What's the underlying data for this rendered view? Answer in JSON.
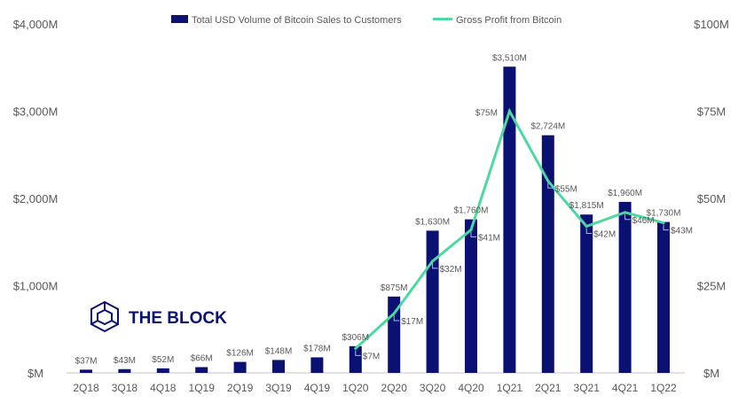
{
  "chart_data": {
    "type": "bar+line",
    "categories": [
      "2Q18",
      "3Q18",
      "4Q18",
      "1Q19",
      "2Q19",
      "3Q19",
      "4Q19",
      "1Q20",
      "2Q20",
      "3Q20",
      "4Q20",
      "1Q21",
      "2Q21",
      "3Q21",
      "4Q21",
      "1Q22"
    ],
    "series": [
      {
        "name": "Total USD Volume of Bitcoin Sales to Customers",
        "type": "bar",
        "axis": "left",
        "color": "#0a1172",
        "values": [
          37,
          43,
          52,
          66,
          126,
          148,
          178,
          306,
          875,
          1630,
          1760,
          3510,
          2724,
          1815,
          1960,
          1730
        ],
        "labels": [
          "$37M",
          "$43M",
          "$52M",
          "$66M",
          "$126M",
          "$148M",
          "$178M",
          "$306M",
          "$875M",
          "$1,630M",
          "$1,760M",
          "$3,510M",
          "$2,724M",
          "$1,815M",
          "$1,960M",
          "$1,730M"
        ]
      },
      {
        "name": "Gross Profit from Bitcoin",
        "type": "line",
        "axis": "right",
        "color": "#4cd9a0",
        "values": [
          null,
          null,
          null,
          null,
          null,
          null,
          null,
          7,
          17,
          32,
          41,
          75,
          55,
          42,
          46,
          43
        ],
        "labels": [
          "",
          "",
          "",
          "",
          "",
          "",
          "",
          "$7M",
          "$17M",
          "$32M",
          "$41M",
          "$75M",
          "$55M",
          "$42M",
          "$46M",
          "$43M"
        ]
      }
    ],
    "left_axis": {
      "ylim": [
        0,
        4000
      ],
      "ticks": [
        0,
        1000,
        2000,
        3000,
        4000
      ],
      "tick_labels": [
        "$M",
        "$1,000M",
        "$2,000M",
        "$3,000M",
        "$4,000M"
      ]
    },
    "right_axis": {
      "ylim": [
        0,
        100
      ],
      "ticks": [
        0,
        25,
        50,
        75,
        100
      ],
      "tick_labels": [
        "$M",
        "$25M",
        "$50M",
        "$75M",
        "$100M"
      ]
    },
    "legend_placement": "top",
    "grid": false
  },
  "logo": {
    "text": "THE BLOCK",
    "color": "#0a1172"
  }
}
